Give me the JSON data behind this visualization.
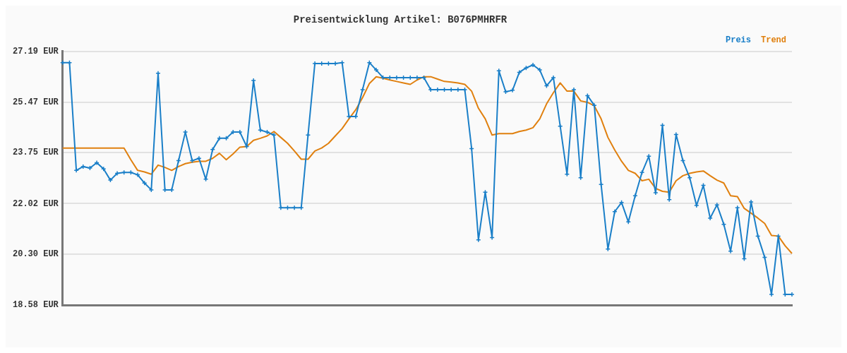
{
  "chart_data": {
    "type": "line",
    "title": "Preisentwicklung Artikel: B076PMHRFR",
    "categories": [
      null,
      null,
      null,
      null,
      null,
      null,
      null,
      null,
      null,
      null,
      null,
      null,
      null,
      null,
      null,
      null,
      null,
      null,
      null,
      null,
      null,
      null,
      null,
      null,
      null,
      null,
      null,
      null,
      null,
      null,
      null,
      null,
      null,
      null,
      null,
      null,
      null,
      null,
      null,
      null,
      null,
      null,
      null,
      null,
      null,
      null,
      null,
      null,
      null,
      null,
      null,
      null,
      null,
      null,
      null,
      null,
      null,
      null,
      null,
      null,
      null,
      null,
      null,
      null,
      null,
      null,
      null,
      null,
      null,
      null,
      null,
      null,
      null,
      null,
      null,
      null,
      null,
      null,
      null,
      null,
      null,
      null,
      null,
      null,
      null,
      null,
      null,
      null,
      null,
      null,
      null,
      null,
      null,
      null,
      null,
      null,
      null,
      null,
      null,
      null,
      null,
      null,
      null,
      null,
      null,
      null,
      null,
      null
    ],
    "ylim": [
      18.58,
      27.19
    ],
    "yticks": [
      {
        "value": 18.58,
        "label": "18.58 EUR"
      },
      {
        "value": 20.3,
        "label": "20.30 EUR"
      },
      {
        "value": 22.02,
        "label": "22.02 EUR"
      },
      {
        "value": 23.75,
        "label": "23.75 EUR"
      },
      {
        "value": 25.47,
        "label": "25.47 EUR"
      },
      {
        "value": 27.19,
        "label": "27.19 EUR"
      }
    ],
    "grid": "y",
    "legend": "top right",
    "tick_labels": "y",
    "line_style": "solid",
    "series": [
      {
        "name": "Preis",
        "color": "#1a7fc8",
        "marker": "cross",
        "values": [
          26.81,
          26.81,
          23.15,
          23.28,
          23.23,
          23.41,
          23.2,
          22.82,
          23.05,
          23.08,
          23.08,
          23.0,
          22.72,
          22.49,
          26.45,
          22.49,
          22.49,
          23.48,
          24.45,
          23.48,
          23.56,
          22.85,
          23.86,
          24.24,
          24.24,
          24.45,
          24.45,
          23.96,
          26.2,
          24.52,
          24.45,
          24.35,
          21.88,
          21.88,
          21.88,
          21.88,
          24.35,
          26.78,
          26.78,
          26.78,
          26.78,
          26.81,
          24.98,
          24.98,
          25.89,
          26.81,
          26.56,
          26.3,
          26.3,
          26.3,
          26.3,
          26.3,
          26.3,
          26.3,
          25.89,
          25.89,
          25.89,
          25.89,
          25.89,
          25.89,
          23.89,
          20.79,
          22.41,
          20.87,
          26.53,
          25.82,
          25.87,
          26.48,
          26.63,
          26.73,
          26.56,
          26.02,
          26.3,
          24.65,
          23.02,
          25.89,
          22.9,
          25.69,
          25.36,
          22.67,
          20.48,
          21.75,
          22.06,
          21.4,
          22.29,
          23.08,
          23.63,
          22.39,
          24.68,
          22.16,
          24.37,
          23.48,
          22.9,
          21.96,
          22.64,
          21.53,
          21.98,
          21.32,
          20.41,
          21.88,
          20.15,
          22.08,
          20.92,
          20.2,
          18.94,
          20.92,
          18.94,
          18.94
        ]
      },
      {
        "name": "Trend",
        "color": "#e0800f",
        "marker": "none",
        "values": [
          23.91,
          23.91,
          23.91,
          23.91,
          23.91,
          23.91,
          23.91,
          23.91,
          23.91,
          23.91,
          23.51,
          23.15,
          23.1,
          23.02,
          23.33,
          23.25,
          23.15,
          23.28,
          23.38,
          23.43,
          23.46,
          23.46,
          23.56,
          23.73,
          23.51,
          23.71,
          23.94,
          23.96,
          24.17,
          24.24,
          24.32,
          24.47,
          24.27,
          24.07,
          23.81,
          23.53,
          23.53,
          23.81,
          23.91,
          24.07,
          24.32,
          24.57,
          24.9,
          25.21,
          25.62,
          26.1,
          26.33,
          26.28,
          26.22,
          26.17,
          26.12,
          26.07,
          26.22,
          26.33,
          26.33,
          26.25,
          26.17,
          26.15,
          26.12,
          26.07,
          25.84,
          25.26,
          24.9,
          24.35,
          24.4,
          24.4,
          24.4,
          24.47,
          24.52,
          24.6,
          24.9,
          25.41,
          25.79,
          26.12,
          25.84,
          25.84,
          25.51,
          25.46,
          25.34,
          24.9,
          24.27,
          23.84,
          23.46,
          23.15,
          23.05,
          22.8,
          22.85,
          22.54,
          22.44,
          22.41,
          22.8,
          22.97,
          23.05,
          23.1,
          23.13,
          22.97,
          22.82,
          22.72,
          22.29,
          22.26,
          21.86,
          21.7,
          21.53,
          21.35,
          20.94,
          20.92,
          20.59,
          20.33
        ]
      }
    ]
  }
}
